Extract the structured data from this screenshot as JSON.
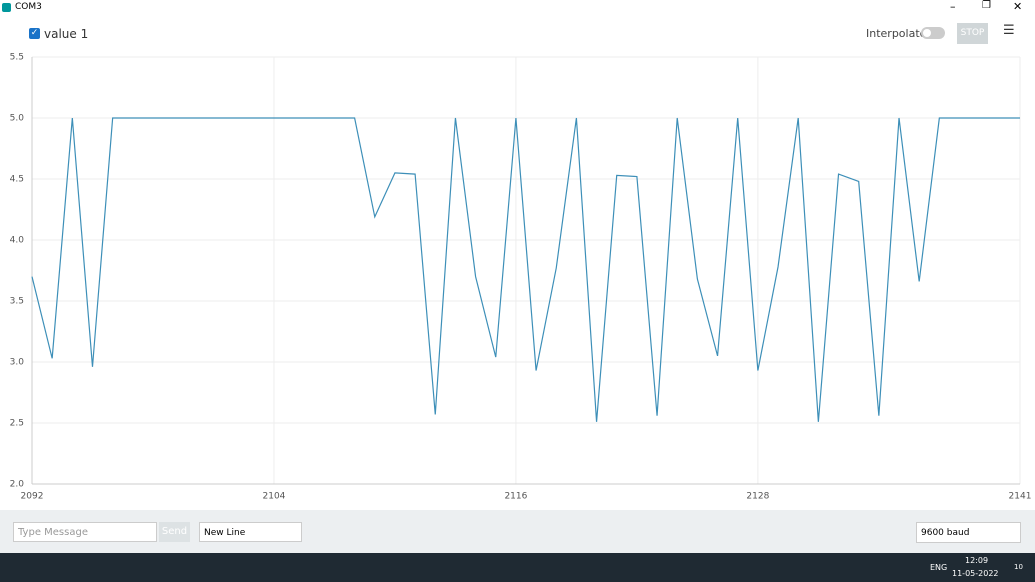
{
  "window": {
    "title": "COM3"
  },
  "toolbar": {
    "interpolate": "Interpolate",
    "stop": "STOP"
  },
  "chart_data": {
    "type": "line",
    "x": [
      2092,
      2093,
      2094,
      2095,
      2096,
      2097,
      2098,
      2099,
      2100,
      2101,
      2102,
      2103,
      2104,
      2105,
      2106,
      2107,
      2108,
      2109,
      2110,
      2111,
      2112,
      2113,
      2114,
      2115,
      2116,
      2117,
      2118,
      2119,
      2120,
      2121,
      2122,
      2123,
      2124,
      2125,
      2126,
      2127,
      2128,
      2129,
      2130,
      2131,
      2132,
      2133,
      2134,
      2135,
      2136,
      2137,
      2138,
      2139,
      2140,
      2141
    ],
    "series": [
      {
        "name": "value 1",
        "color": "#3d8fb8",
        "values": [
          3.7,
          3.03,
          5.0,
          2.96,
          5.0,
          5.0,
          5.0,
          5.0,
          5.0,
          5.0,
          5.0,
          5.0,
          5.0,
          5.0,
          5.0,
          5.0,
          5.0,
          4.19,
          4.55,
          4.54,
          2.57,
          5.0,
          3.7,
          3.04,
          5.0,
          2.93,
          3.77,
          5.0,
          2.51,
          4.53,
          4.52,
          2.56,
          5.0,
          3.68,
          3.05,
          5.0,
          2.93,
          3.78,
          5.0,
          2.51,
          4.54,
          4.48,
          2.56,
          5.0,
          3.66,
          5.0,
          5.0,
          5.0,
          5.0,
          5.0
        ]
      }
    ],
    "xlim": [
      2092,
      2141
    ],
    "xticks": [
      2092,
      2104,
      2116,
      2128,
      2141
    ],
    "ylim": [
      2.0,
      5.5
    ],
    "yticks": [
      {
        "value": 2,
        "label": "2.0"
      },
      2.5,
      {
        "value": 3,
        "label": "3.0"
      },
      3.5,
      {
        "value": 4,
        "label": "4.0"
      },
      4.5,
      {
        "value": 5,
        "label": "5.0"
      },
      5.5
    ],
    "grid": true
  },
  "bottom_bar": {
    "message_placeholder": "Type Message",
    "send": "Send",
    "line_ending": "New Line",
    "baud": "9600 baud"
  },
  "taskbar": {
    "language": "ENG",
    "time": "12:09",
    "date": "11-05-2022",
    "badge": "10"
  }
}
